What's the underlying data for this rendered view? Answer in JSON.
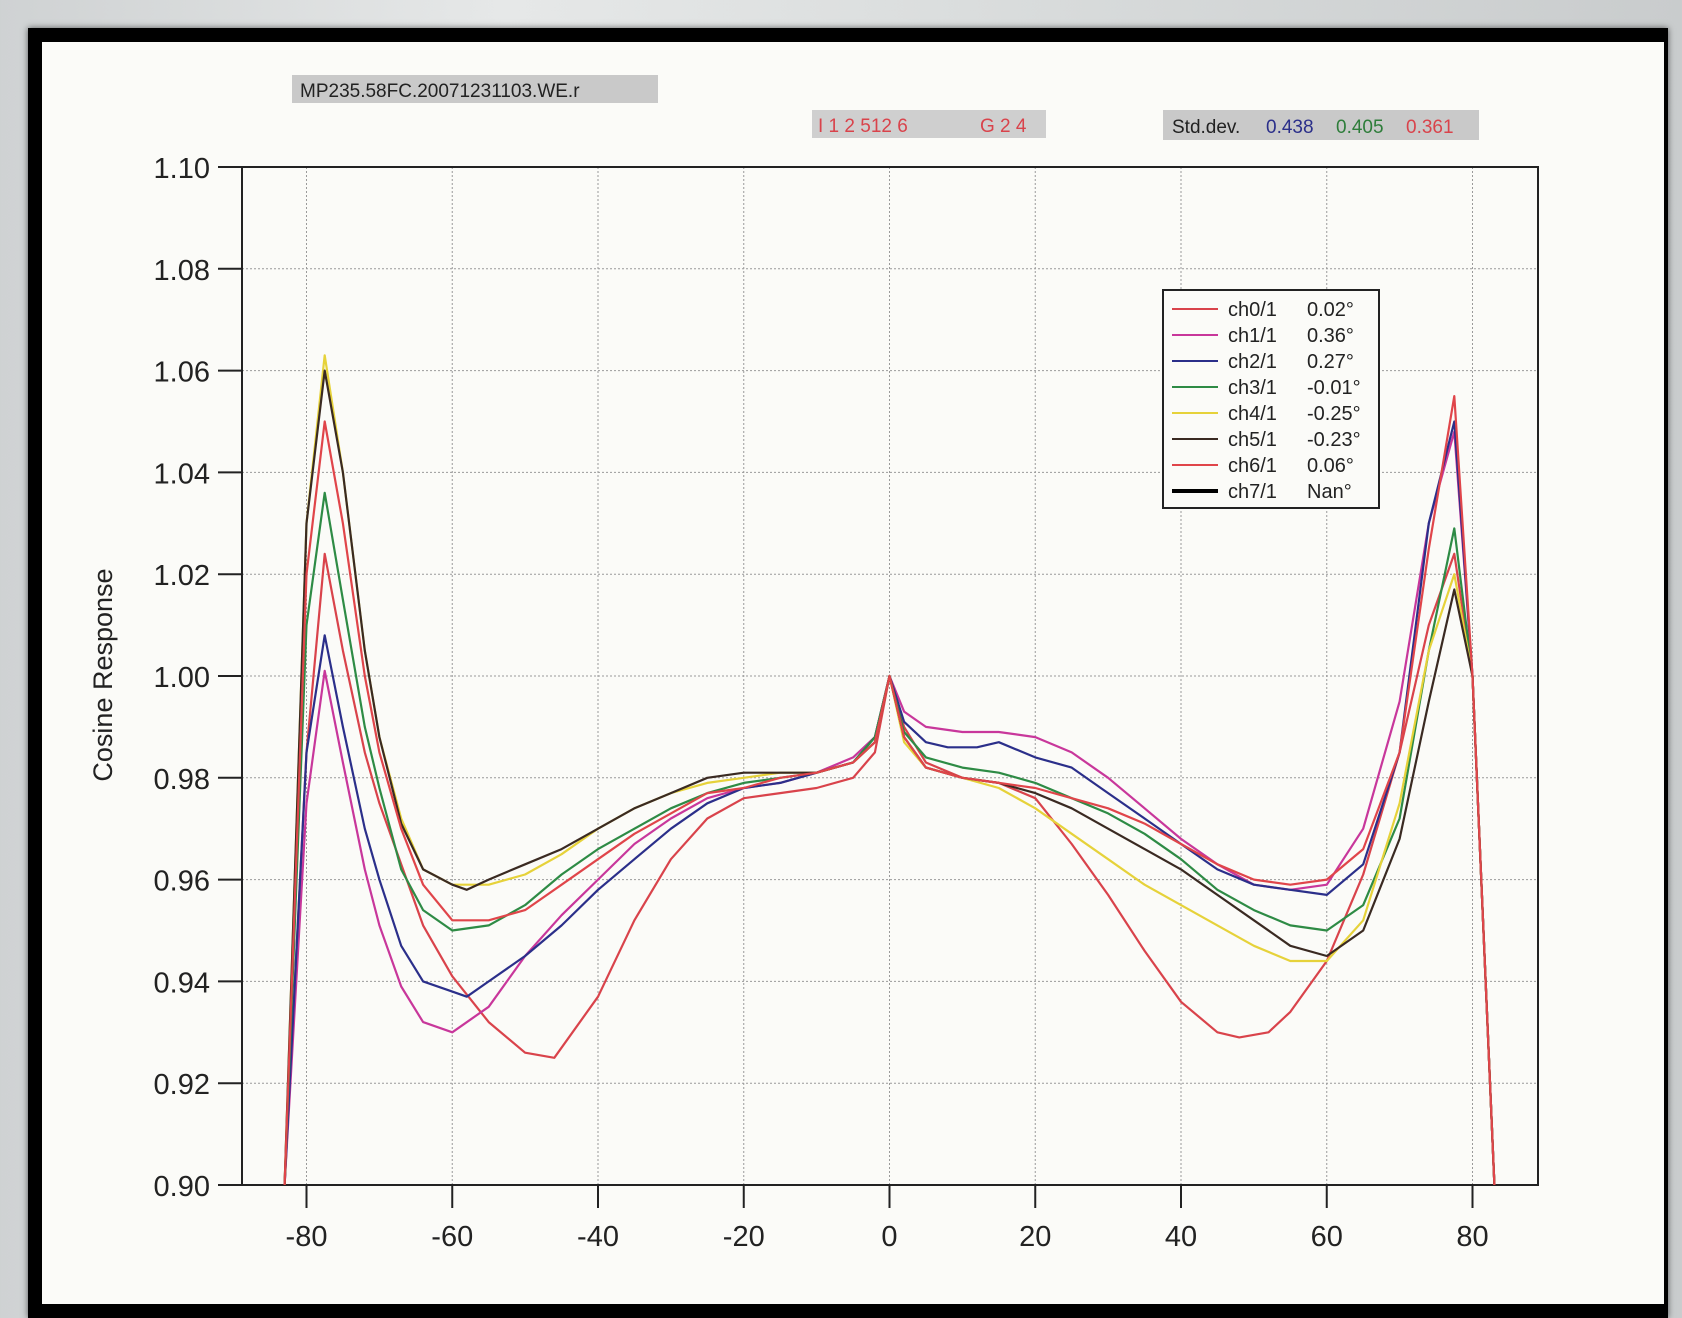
{
  "header": {
    "file_label": "MP235.58FC.20071231103.WE.r",
    "code_part1": "I 1 2 512  6",
    "code_part2": "G 2 4",
    "stddev_label": "Std.dev.",
    "stddev_values": [
      {
        "text": "0.438",
        "color": "#2b2f8a"
      },
      {
        "text": "0.405",
        "color": "#2e7d3a"
      },
      {
        "text": "0.361",
        "color": "#d9434b"
      }
    ]
  },
  "chart_data": {
    "type": "line",
    "ylabel": "Cosine Response",
    "xlabel": "",
    "xlim": [
      -90,
      90
    ],
    "ylim": [
      0.9,
      1.1
    ],
    "xticks": [
      -80,
      -60,
      -40,
      -20,
      0,
      20,
      40,
      60,
      80
    ],
    "yticks": [
      0.9,
      0.92,
      0.94,
      0.96,
      0.98,
      1.0,
      1.02,
      1.04,
      1.06,
      1.08,
      1.1
    ],
    "ytick_labels": [
      "0.90",
      "0.92",
      "0.94",
      "0.96",
      "0.98",
      "1.00",
      "1.02",
      "1.04",
      "1.06",
      "1.08",
      "1.10"
    ],
    "grid": true,
    "legend_position": "top-right",
    "series": [
      {
        "name": "ch0/1",
        "angle": "0.02°",
        "color": "#d9434b",
        "x": [
          -83,
          -80,
          -77.5,
          -75,
          -72,
          -70,
          -67,
          -64,
          -60,
          -55,
          -50,
          -46,
          -40,
          -35,
          -30,
          -25,
          -20,
          -15,
          -10,
          -5,
          -2,
          0,
          2,
          5,
          10,
          15,
          20,
          25,
          30,
          35,
          40,
          45,
          48,
          52,
          55,
          60,
          65,
          70,
          74,
          77.5,
          80,
          83
        ],
        "y": [
          0.9,
          0.985,
          1.024,
          1.005,
          0.985,
          0.975,
          0.963,
          0.951,
          0.941,
          0.932,
          0.926,
          0.925,
          0.937,
          0.952,
          0.964,
          0.972,
          0.976,
          0.977,
          0.978,
          0.98,
          0.985,
          1.0,
          0.99,
          0.983,
          0.98,
          0.979,
          0.976,
          0.967,
          0.957,
          0.946,
          0.936,
          0.93,
          0.929,
          0.93,
          0.934,
          0.944,
          0.961,
          0.985,
          1.01,
          1.024,
          1.0,
          0.9
        ]
      },
      {
        "name": "ch1/1",
        "angle": "0.36°",
        "color": "#c8379b",
        "x": [
          -83,
          -80,
          -77.5,
          -75,
          -72,
          -70,
          -67,
          -64,
          -60,
          -55,
          -50,
          -45,
          -40,
          -35,
          -30,
          -25,
          -20,
          -15,
          -10,
          -5,
          -2,
          0,
          2,
          5,
          10,
          15,
          20,
          25,
          30,
          35,
          40,
          45,
          50,
          55,
          60,
          65,
          70,
          74,
          77.5,
          80,
          83
        ],
        "y": [
          0.9,
          0.975,
          1.001,
          0.983,
          0.962,
          0.951,
          0.939,
          0.932,
          0.93,
          0.935,
          0.945,
          0.953,
          0.96,
          0.967,
          0.972,
          0.976,
          0.978,
          0.979,
          0.981,
          0.984,
          0.988,
          1.0,
          0.993,
          0.99,
          0.989,
          0.989,
          0.988,
          0.985,
          0.98,
          0.974,
          0.968,
          0.963,
          0.959,
          0.958,
          0.959,
          0.97,
          0.995,
          1.03,
          1.048,
          1.0,
          0.9
        ]
      },
      {
        "name": "ch2/1",
        "angle": "0.27°",
        "color": "#2b2f8a",
        "x": [
          -83,
          -80,
          -77.5,
          -75,
          -72,
          -70,
          -67,
          -64,
          -60,
          -58,
          -55,
          -50,
          -45,
          -40,
          -35,
          -30,
          -25,
          -20,
          -15,
          -10,
          -5,
          -2,
          0,
          2,
          5,
          8,
          12,
          15,
          20,
          25,
          30,
          35,
          40,
          45,
          50,
          55,
          60,
          65,
          70,
          74,
          77.5,
          80,
          83
        ],
        "y": [
          0.9,
          0.985,
          1.008,
          0.99,
          0.97,
          0.96,
          0.947,
          0.94,
          0.938,
          0.937,
          0.94,
          0.945,
          0.951,
          0.958,
          0.964,
          0.97,
          0.975,
          0.978,
          0.979,
          0.981,
          0.983,
          0.988,
          1.0,
          0.991,
          0.987,
          0.986,
          0.986,
          0.987,
          0.984,
          0.982,
          0.977,
          0.972,
          0.967,
          0.962,
          0.959,
          0.958,
          0.957,
          0.963,
          0.985,
          1.03,
          1.05,
          1.0,
          0.9
        ]
      },
      {
        "name": "ch3/1",
        "angle": "-0.01°",
        "color": "#2e8b45",
        "x": [
          -83,
          -80,
          -77.5,
          -75,
          -72,
          -70,
          -67,
          -64,
          -60,
          -55,
          -50,
          -45,
          -40,
          -35,
          -30,
          -25,
          -20,
          -15,
          -10,
          -5,
          -2,
          0,
          2,
          5,
          10,
          15,
          20,
          25,
          30,
          35,
          40,
          45,
          50,
          55,
          60,
          65,
          70,
          74,
          77.5,
          80,
          83
        ],
        "y": [
          0.9,
          1.01,
          1.036,
          1.015,
          0.99,
          0.978,
          0.962,
          0.954,
          0.95,
          0.951,
          0.955,
          0.961,
          0.966,
          0.97,
          0.974,
          0.977,
          0.979,
          0.98,
          0.981,
          0.983,
          0.988,
          1.0,
          0.989,
          0.984,
          0.982,
          0.981,
          0.979,
          0.976,
          0.973,
          0.969,
          0.964,
          0.958,
          0.954,
          0.951,
          0.95,
          0.955,
          0.972,
          1.005,
          1.029,
          1.0,
          0.9
        ]
      },
      {
        "name": "ch4/1",
        "angle": "-0.25°",
        "color": "#e6d23a",
        "x": [
          -83,
          -80,
          -77.5,
          -75,
          -72,
          -70,
          -67,
          -64,
          -60,
          -57,
          -55,
          -50,
          -45,
          -40,
          -35,
          -30,
          -25,
          -20,
          -15,
          -10,
          -5,
          -2,
          0,
          2,
          5,
          10,
          15,
          20,
          25,
          30,
          35,
          40,
          45,
          50,
          55,
          60,
          65,
          70,
          74,
          77.5,
          80,
          83
        ],
        "y": [
          0.9,
          1.03,
          1.063,
          1.04,
          1.005,
          0.988,
          0.972,
          0.962,
          0.959,
          0.959,
          0.959,
          0.961,
          0.965,
          0.97,
          0.974,
          0.977,
          0.979,
          0.98,
          0.981,
          0.981,
          0.983,
          0.987,
          1.0,
          0.987,
          0.982,
          0.98,
          0.978,
          0.974,
          0.969,
          0.964,
          0.959,
          0.955,
          0.951,
          0.947,
          0.944,
          0.944,
          0.952,
          0.975,
          1.005,
          1.02,
          1.0,
          0.9
        ]
      },
      {
        "name": "ch5/1",
        "angle": "-0.23°",
        "color": "#3a2a22",
        "x": [
          -83,
          -80,
          -77.5,
          -75,
          -72,
          -70,
          -67,
          -64,
          -60,
          -58,
          -55,
          -50,
          -45,
          -40,
          -35,
          -30,
          -25,
          -20,
          -15,
          -10,
          -5,
          -2,
          0,
          2,
          5,
          10,
          15,
          20,
          25,
          30,
          35,
          40,
          45,
          50,
          55,
          60,
          65,
          70,
          74,
          77.5,
          80,
          83
        ],
        "y": [
          0.9,
          1.03,
          1.06,
          1.04,
          1.005,
          0.988,
          0.971,
          0.962,
          0.959,
          0.958,
          0.96,
          0.963,
          0.966,
          0.97,
          0.974,
          0.977,
          0.98,
          0.981,
          0.981,
          0.981,
          0.983,
          0.987,
          1.0,
          0.988,
          0.982,
          0.98,
          0.979,
          0.977,
          0.974,
          0.97,
          0.966,
          0.962,
          0.957,
          0.952,
          0.947,
          0.945,
          0.95,
          0.968,
          0.995,
          1.017,
          1.0,
          0.9
        ]
      },
      {
        "name": "ch6/1",
        "angle": "0.06°",
        "color": "#e0454a",
        "x": [
          -83,
          -80,
          -77.5,
          -75,
          -72,
          -70,
          -67,
          -64,
          -60,
          -55,
          -50,
          -45,
          -40,
          -35,
          -30,
          -25,
          -20,
          -15,
          -10,
          -5,
          -2,
          0,
          2,
          5,
          10,
          15,
          20,
          25,
          30,
          35,
          40,
          45,
          50,
          55,
          60,
          65,
          70,
          74,
          77.5,
          80,
          83
        ],
        "y": [
          0.9,
          1.02,
          1.05,
          1.03,
          1.0,
          0.985,
          0.97,
          0.959,
          0.952,
          0.952,
          0.954,
          0.959,
          0.964,
          0.969,
          0.973,
          0.977,
          0.978,
          0.98,
          0.981,
          0.983,
          0.987,
          1.0,
          0.988,
          0.982,
          0.98,
          0.979,
          0.978,
          0.976,
          0.974,
          0.971,
          0.967,
          0.963,
          0.96,
          0.959,
          0.96,
          0.966,
          0.985,
          1.025,
          1.055,
          1.0,
          0.9
        ]
      },
      {
        "name": "ch7/1",
        "angle": "Nan°",
        "color": "#000000",
        "values": []
      }
    ]
  }
}
